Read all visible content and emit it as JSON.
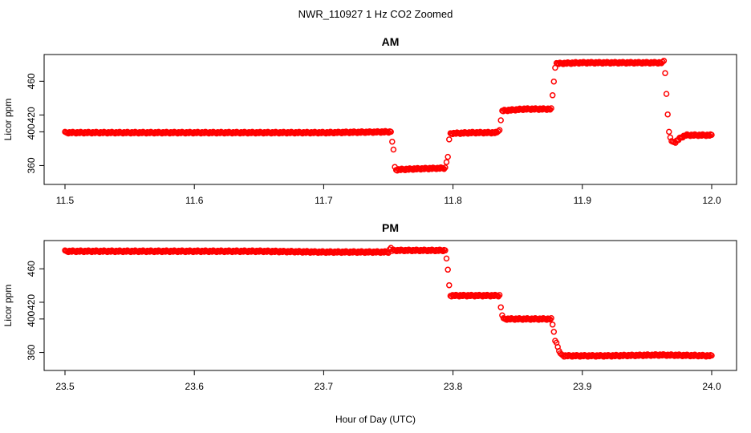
{
  "figure_title": "NWR_110927  1 Hz CO2 Zoomed",
  "xlabel": "Hour of Day (UTC)",
  "colors": {
    "points": "#ff0000",
    "axes": "#000000",
    "background": "#ffffff"
  },
  "chart_data": [
    {
      "type": "scatter",
      "title": "AM",
      "ylabel": "Licor ppm",
      "xlim": [
        11.5,
        12.0
      ],
      "ylim": [
        349,
        486
      ],
      "xticks": [
        11.5,
        11.6,
        11.7,
        11.8,
        11.9,
        12.0
      ],
      "xtick_labels": [
        "11.5",
        "11.6",
        "11.7",
        "11.8",
        "11.9",
        "12.0"
      ],
      "yticks": [
        360,
        400,
        420,
        460
      ],
      "ytick_labels": [
        "360",
        "400",
        "420",
        "460"
      ],
      "grid": false,
      "series_points": [
        [
          11.5,
          399
        ],
        [
          11.55,
          399
        ],
        [
          11.6,
          399
        ],
        [
          11.65,
          399
        ],
        [
          11.7,
          399
        ],
        [
          11.752,
          400
        ],
        [
          11.754,
          378
        ],
        [
          11.755,
          358
        ],
        [
          11.756,
          355
        ],
        [
          11.77,
          356
        ],
        [
          11.794,
          357
        ],
        [
          11.796,
          371
        ],
        [
          11.797,
          390
        ],
        [
          11.798,
          398
        ],
        [
          11.815,
          399
        ],
        [
          11.834,
          399
        ],
        [
          11.836,
          403
        ],
        [
          11.837,
          413
        ],
        [
          11.838,
          425
        ],
        [
          11.855,
          427
        ],
        [
          11.876,
          427
        ],
        [
          11.877,
          443
        ],
        [
          11.878,
          460
        ],
        [
          11.879,
          477
        ],
        [
          11.88,
          481
        ],
        [
          11.9,
          482
        ],
        [
          11.94,
          482
        ],
        [
          11.962,
          482
        ],
        [
          11.963,
          484
        ],
        [
          11.964,
          470
        ],
        [
          11.965,
          446
        ],
        [
          11.966,
          420
        ],
        [
          11.967,
          400
        ],
        [
          11.969,
          388
        ],
        [
          11.972,
          388
        ],
        [
          11.976,
          393
        ],
        [
          11.98,
          396
        ],
        [
          12.0,
          396
        ]
      ]
    },
    {
      "type": "scatter",
      "title": "PM",
      "ylabel": "Licor ppm",
      "xlim": [
        23.5,
        24.0
      ],
      "ylim": [
        350,
        488
      ],
      "xticks": [
        23.5,
        23.6,
        23.7,
        23.8,
        23.9,
        24.0
      ],
      "xtick_labels": [
        "23.5",
        "23.6",
        "23.7",
        "23.8",
        "23.9",
        "24.0"
      ],
      "yticks": [
        360,
        400,
        420,
        460
      ],
      "ytick_labels": [
        "360",
        "400",
        "420",
        "460"
      ],
      "grid": false,
      "series_points": [
        [
          23.5,
          481
        ],
        [
          23.55,
          481
        ],
        [
          23.6,
          481
        ],
        [
          23.65,
          481
        ],
        [
          23.7,
          480
        ],
        [
          23.75,
          480
        ],
        [
          23.752,
          485
        ],
        [
          23.753,
          482
        ],
        [
          23.77,
          482
        ],
        [
          23.794,
          482
        ],
        [
          23.795,
          473
        ],
        [
          23.796,
          458
        ],
        [
          23.797,
          440
        ],
        [
          23.798,
          428
        ],
        [
          23.815,
          428
        ],
        [
          23.836,
          428
        ],
        [
          23.837,
          414
        ],
        [
          23.838,
          405
        ],
        [
          23.839,
          400
        ],
        [
          23.86,
          400
        ],
        [
          23.876,
          400
        ],
        [
          23.877,
          393
        ],
        [
          23.878,
          385
        ],
        [
          23.879,
          375
        ],
        [
          23.88,
          371
        ],
        [
          23.883,
          358
        ],
        [
          23.886,
          356
        ],
        [
          23.92,
          356
        ],
        [
          23.96,
          357
        ],
        [
          24.0,
          356
        ]
      ]
    }
  ]
}
